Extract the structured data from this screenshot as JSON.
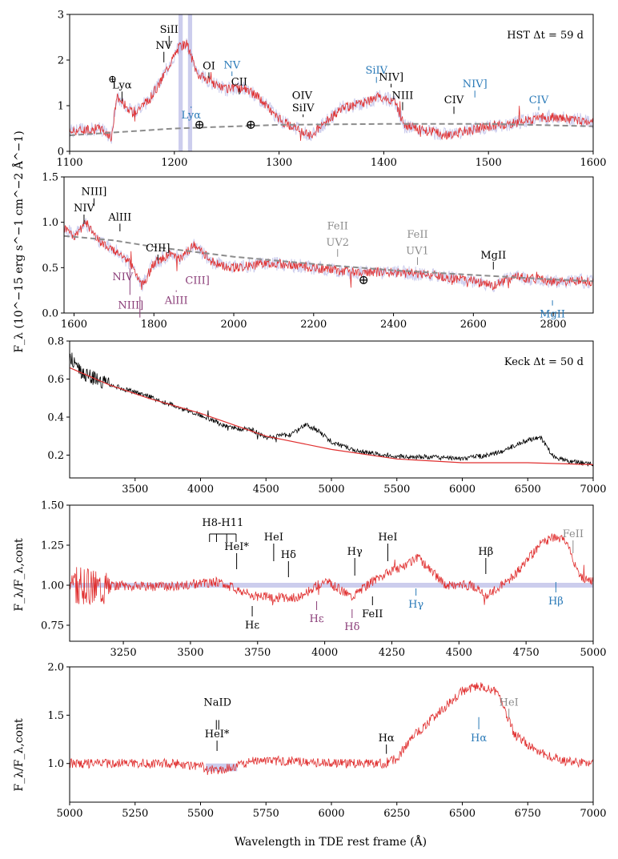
{
  "colors": {
    "spectrum": "#e03030",
    "continuum_dash": "#8c8c8c",
    "model_line": "#e03030",
    "keck_raw": "#000000",
    "error_band": "#b7b8e6",
    "black": "#000000",
    "blue": "#2a7ab8",
    "purple": "#8a3d78",
    "gray": "#8c8c8c"
  },
  "figure": {
    "ylabel_flux": "F_λ (10^−15 erg s^−1 cm^−2 Å^−1)",
    "ylabel_norm": "F_λ/F_λ,cont",
    "xlabel": "Wavelength in TDE rest frame (Å)"
  },
  "chart_data": [
    {
      "id": "panel1",
      "type": "line",
      "title": "HST Δt = 59 d",
      "xlim": [
        1100,
        1600
      ],
      "ylim": [
        0,
        3
      ],
      "xticks": [
        1100,
        1200,
        1300,
        1400,
        1500,
        1600
      ],
      "yticks": [
        0,
        1,
        2,
        3
      ],
      "series": [
        {
          "name": "spectrum",
          "style": "noisy",
          "x": [
            1100,
            1130,
            1140,
            1145,
            1160,
            1175,
            1185,
            1195,
            1205,
            1212,
            1222,
            1235,
            1250,
            1265,
            1280,
            1300,
            1320,
            1330,
            1345,
            1360,
            1380,
            1395,
            1410,
            1420,
            1440,
            1460,
            1480,
            1500,
            1520,
            1540,
            1560,
            1580,
            1600
          ],
          "y": [
            0.45,
            0.5,
            0.3,
            1.2,
            0.85,
            1.1,
            1.45,
            1.9,
            2.3,
            2.35,
            1.7,
            1.5,
            1.35,
            1.4,
            1.2,
            0.7,
            0.45,
            0.35,
            0.65,
            0.95,
            1.05,
            1.2,
            1.1,
            0.55,
            0.45,
            0.35,
            0.45,
            0.55,
            0.6,
            0.7,
            0.75,
            0.7,
            0.65
          ]
        },
        {
          "name": "continuum",
          "style": "dashed",
          "x": [
            1100,
            1200,
            1300,
            1400,
            1500,
            1600
          ],
          "y": [
            0.35,
            0.5,
            0.58,
            0.6,
            0.6,
            0.55
          ]
        }
      ],
      "bands": [
        {
          "x1": 1204,
          "x2": 1208
        },
        {
          "x1": 1213,
          "x2": 1217
        }
      ],
      "annotations": [
        {
          "text": "Lyα",
          "x": 1150,
          "y": 1.38,
          "tick_to": 1.1,
          "color": "black",
          "symbol": "⊕",
          "symbol_y": 1.6
        },
        {
          "text": "Lyα",
          "x": 1216,
          "y": 0.72,
          "tick_to": 0.95,
          "color": "blue",
          "tick_up": true
        },
        {
          "text": "NV",
          "x": 1190,
          "y": 2.25,
          "tick_to": 1.95,
          "color": "black"
        },
        {
          "text": "SiII",
          "x": 1195,
          "y": 2.6,
          "tick_to": 2.3,
          "color": "black"
        },
        {
          "text": "OI",
          "x": 1233,
          "y": 1.8,
          "tick_to": 1.6,
          "color": "black"
        },
        {
          "text": "NV",
          "x": 1255,
          "y": 1.82,
          "tick_to": 1.65,
          "color": "blue"
        },
        {
          "text": "CII",
          "x": 1262,
          "y": 1.45,
          "tick_to": 1.25,
          "color": "black"
        },
        {
          "text": "OIV",
          "x": 1322,
          "y": 1.15,
          "color": "black"
        },
        {
          "text": "SiIV",
          "x": 1323,
          "y": 0.88,
          "tick_to": 0.75,
          "color": "black"
        },
        {
          "text": "SiIV",
          "x": 1393,
          "y": 1.7,
          "tick_to": 1.5,
          "color": "blue"
        },
        {
          "text": "NIV]",
          "x": 1407,
          "y": 1.55,
          "tick_to": 1.4,
          "color": "black"
        },
        {
          "text": "NIII",
          "x": 1418,
          "y": 1.15,
          "tick_to": 0.9,
          "color": "black"
        },
        {
          "text": "CIV",
          "x": 1467,
          "y": 1.05,
          "tick_to": 0.82,
          "color": "black"
        },
        {
          "text": "NIV]",
          "x": 1487,
          "y": 1.4,
          "tick_to": 1.18,
          "color": "blue"
        },
        {
          "text": "CIV",
          "x": 1548,
          "y": 1.05,
          "tick_to": 0.9,
          "color": "blue"
        }
      ],
      "symbols": [
        {
          "text": "⊕",
          "x": 1224,
          "y": 0.58
        },
        {
          "text": "⊕",
          "x": 1273,
          "y": 0.58
        }
      ]
    },
    {
      "id": "panel2",
      "type": "line",
      "title": "",
      "xlim": [
        1575,
        2900
      ],
      "ylim": [
        0,
        1.5
      ],
      "xticks": [
        1600,
        1800,
        2000,
        2200,
        2400,
        2600,
        2800
      ],
      "yticks": [
        0.0,
        0.5,
        1.0,
        1.5
      ],
      "series": [
        {
          "name": "spectrum",
          "style": "noisy",
          "x": [
            1575,
            1600,
            1630,
            1660,
            1700,
            1740,
            1770,
            1800,
            1840,
            1870,
            1900,
            1950,
            2000,
            2100,
            2200,
            2300,
            2400,
            2500,
            2600,
            2650,
            2700,
            2800,
            2900
          ],
          "y": [
            0.95,
            0.85,
            1.0,
            0.8,
            0.7,
            0.55,
            0.3,
            0.55,
            0.65,
            0.6,
            0.75,
            0.55,
            0.5,
            0.55,
            0.5,
            0.45,
            0.45,
            0.42,
            0.35,
            0.3,
            0.4,
            0.35,
            0.35
          ]
        },
        {
          "name": "continuum",
          "style": "dashed",
          "x": [
            1575,
            1700,
            1800,
            2000,
            2200,
            2400,
            2600,
            2800,
            2900
          ],
          "y": [
            0.85,
            0.8,
            0.73,
            0.62,
            0.54,
            0.47,
            0.42,
            0.37,
            0.35
          ]
        }
      ],
      "annotations": [
        {
          "text": "NIV",
          "x": 1625,
          "y": 1.12,
          "tick_to": 0.98,
          "color": "black"
        },
        {
          "text": "NIII]",
          "x": 1650,
          "y": 1.3,
          "tick_to": 1.18,
          "color": "black"
        },
        {
          "text": "AlIII",
          "x": 1715,
          "y": 1.02,
          "tick_to": 0.9,
          "color": "black"
        },
        {
          "text": "CIII]",
          "x": 1810,
          "y": 0.68,
          "tick_to": 0.58,
          "color": "black"
        },
        {
          "text": "FeII",
          "x": 2260,
          "y": 0.92,
          "color": "gray"
        },
        {
          "text": "UV2",
          "x": 2260,
          "y": 0.74,
          "tick_to": 0.62,
          "color": "gray"
        },
        {
          "text": "FeII",
          "x": 2460,
          "y": 0.83,
          "color": "gray"
        },
        {
          "text": "UV1",
          "x": 2460,
          "y": 0.65,
          "tick_to": 0.53,
          "color": "gray"
        },
        {
          "text": "MgII",
          "x": 2650,
          "y": 0.6,
          "tick_to": 0.48,
          "color": "black"
        },
        {
          "text": "NIV",
          "x": 1740,
          "y": 0.36,
          "tick_to": 0.2,
          "color": "purple",
          "tick_up": true,
          "label_x": 1722
        },
        {
          "text": "NIII]",
          "x": 1765,
          "y": 0.05,
          "tick_to": -0.05,
          "color": "purple",
          "tick_up": true,
          "label_x": 1742
        },
        {
          "text": "AlIII",
          "x": 1856,
          "y": 0.1,
          "tick_to": 0.25,
          "color": "purple",
          "tick_up": true
        },
        {
          "text": "CIII]",
          "x": 1909,
          "y": 0.32,
          "tick_to": 0.45,
          "color": "purple",
          "tick_up": true
        },
        {
          "text": "MgII",
          "x": 2798,
          "y": -0.05,
          "tick_to": 0.14,
          "color": "blue",
          "tick_up": true
        }
      ],
      "symbols": [
        {
          "text": "⊕",
          "x": 2325,
          "y": 0.36
        }
      ]
    },
    {
      "id": "panel3",
      "type": "line",
      "title": "Keck Δt = 50 d",
      "xlim": [
        3000,
        7000
      ],
      "ylim": [
        0.08,
        0.8
      ],
      "xticks": [
        3500,
        4000,
        4500,
        5000,
        5500,
        6000,
        6500,
        7000
      ],
      "yticks": [
        0.2,
        0.4,
        0.6,
        0.8
      ],
      "series": [
        {
          "name": "keck",
          "style": "noisy",
          "x": [
            3000,
            3080,
            3200,
            3400,
            3600,
            3800,
            4000,
            4200,
            4300,
            4400,
            4500,
            4700,
            4800,
            4900,
            5000,
            5200,
            5400,
            5600,
            5800,
            6000,
            6200,
            6300,
            6400,
            6500,
            6600,
            6700,
            6800,
            7000
          ],
          "y": [
            0.72,
            0.64,
            0.6,
            0.55,
            0.51,
            0.46,
            0.41,
            0.35,
            0.34,
            0.33,
            0.29,
            0.31,
            0.36,
            0.33,
            0.27,
            0.22,
            0.2,
            0.19,
            0.19,
            0.18,
            0.2,
            0.22,
            0.25,
            0.28,
            0.29,
            0.19,
            0.17,
            0.15
          ]
        },
        {
          "name": "model",
          "style": "solid",
          "x": [
            3000,
            3300,
            3600,
            4000,
            4500,
            5000,
            5500,
            6000,
            6500,
            7000
          ],
          "y": [
            0.66,
            0.57,
            0.5,
            0.42,
            0.3,
            0.23,
            0.18,
            0.16,
            0.16,
            0.15
          ]
        }
      ],
      "annotations": []
    },
    {
      "id": "panel4",
      "type": "line",
      "title": "",
      "xlim": [
        3050,
        5000
      ],
      "ylim": [
        0.65,
        1.5
      ],
      "xticks": [
        3250,
        3500,
        3750,
        4000,
        4250,
        4500,
        4750,
        5000
      ],
      "yticks": [
        0.75,
        1.0,
        1.25,
        1.5
      ],
      "series": [
        {
          "name": "normalized",
          "style": "noisy",
          "x": [
            3050,
            3200,
            3400,
            3600,
            3750,
            3900,
            4000,
            4100,
            4200,
            4300,
            4350,
            4450,
            4550,
            4600,
            4700,
            4800,
            4850,
            4900,
            4950,
            5000
          ],
          "y": [
            1.0,
            1.0,
            0.99,
            1.02,
            0.93,
            0.92,
            1.03,
            0.93,
            1.05,
            1.12,
            1.17,
            1.0,
            1.0,
            0.93,
            1.05,
            1.25,
            1.3,
            1.28,
            1.05,
            1.02
          ]
        }
      ],
      "bands": [
        {
          "x1": 3050,
          "x2": 5000,
          "y1": 0.985,
          "y2": 1.015
        }
      ],
      "comb": {
        "label": "H8-H11",
        "x": [
          3571,
          3597,
          3635,
          3670
        ],
        "y_label": 1.37,
        "y_bar": 1.32,
        "y_bottom": 1.27
      },
      "annotations": [
        {
          "text": "HeI*",
          "x": 3672,
          "y": 1.22,
          "tick_to": 1.1,
          "color": "black"
        },
        {
          "text": "HeI",
          "x": 3810,
          "y": 1.28,
          "tick_to": 1.15,
          "color": "black"
        },
        {
          "text": "Hδ",
          "x": 3865,
          "y": 1.17,
          "tick_to": 1.05,
          "color": "black"
        },
        {
          "text": "Hγ",
          "x": 4112,
          "y": 1.19,
          "tick_to": 1.06,
          "color": "black"
        },
        {
          "text": "HeI",
          "x": 4235,
          "y": 1.28,
          "tick_to": 1.15,
          "color": "black"
        },
        {
          "text": "Hβ",
          "x": 4600,
          "y": 1.19,
          "tick_to": 1.07,
          "color": "black"
        },
        {
          "text": "FeII",
          "x": 4925,
          "y": 1.3,
          "tick_to": 1.2,
          "color": "gray"
        },
        {
          "text": "Hε",
          "x": 3730,
          "y": 0.73,
          "tick_to": 0.87,
          "color": "black",
          "tick_up": true
        },
        {
          "text": "Hε",
          "x": 3970,
          "y": 0.77,
          "tick_to": 0.9,
          "color": "purple",
          "tick_up": true
        },
        {
          "text": "Hδ",
          "x": 4102,
          "y": 0.72,
          "tick_to": 0.85,
          "color": "purple",
          "tick_up": true
        },
        {
          "text": "FeII",
          "x": 4178,
          "y": 0.8,
          "tick_to": 0.93,
          "color": "black",
          "tick_up": true
        },
        {
          "text": "Hγ",
          "x": 4340,
          "y": 0.86,
          "tick_to": 0.98,
          "color": "blue",
          "tick_up": true
        },
        {
          "text": "Hβ",
          "x": 4861,
          "y": 0.88,
          "tick_to": 1.02,
          "color": "blue",
          "tick_up": true
        }
      ]
    },
    {
      "id": "panel5",
      "type": "line",
      "title": "",
      "xlim": [
        5000,
        7000
      ],
      "ylim": [
        0.6,
        2.0
      ],
      "xticks": [
        5000,
        5250,
        5500,
        5750,
        6000,
        6250,
        6500,
        6750,
        7000
      ],
      "yticks": [
        1.0,
        1.5,
        2.0
      ],
      "series": [
        {
          "name": "normalized",
          "style": "noisy",
          "x": [
            5000,
            5200,
            5400,
            5500,
            5550,
            5600,
            5700,
            5800,
            5900,
            6000,
            6100,
            6200,
            6250,
            6300,
            6400,
            6500,
            6550,
            6600,
            6640,
            6660,
            6700,
            6800,
            6900,
            7000
          ],
          "y": [
            1.0,
            1.0,
            1.0,
            0.97,
            0.93,
            0.95,
            1.02,
            1.03,
            1.02,
            1.0,
            1.0,
            1.0,
            1.05,
            1.25,
            1.5,
            1.75,
            1.8,
            1.78,
            1.72,
            1.55,
            1.3,
            1.1,
            1.02,
            1.0
          ]
        }
      ],
      "bands": [
        {
          "x1": 5520,
          "x2": 5640,
          "y1": 0.92,
          "y2": 1.0
        }
      ],
      "annotations": [
        {
          "text": "NaID",
          "x": 5565,
          "y": 1.6,
          "color": "black",
          "double_tick": {
            "from": 1.45,
            "to": 1.35
          }
        },
        {
          "text": "HeI*",
          "x": 5563,
          "y": 1.27,
          "tick_to": 1.13,
          "color": "black"
        },
        {
          "text": "Hα",
          "x": 6210,
          "y": 1.23,
          "tick_to": 1.1,
          "color": "black"
        },
        {
          "text": "Hα",
          "x": 6563,
          "y": 1.23,
          "tick_to": 1.48,
          "color": "blue",
          "tick_up": true
        },
        {
          "text": "HeI",
          "x": 6678,
          "y": 1.6,
          "tick_to": 1.47,
          "color": "gray"
        }
      ]
    }
  ]
}
